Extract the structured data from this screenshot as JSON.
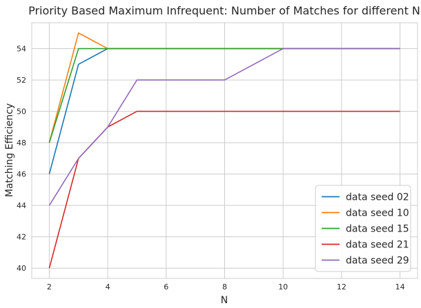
{
  "chart_data": {
    "type": "line",
    "title": "Priority Based Maximum Infrequent: Number of Matches for different N",
    "xlabel": "N",
    "ylabel": "Matching Efficiency",
    "xlim": [
      1.4,
      14.6
    ],
    "ylim": [
      39.35,
      55.65
    ],
    "xticks": [
      2,
      4,
      6,
      8,
      10,
      12,
      14
    ],
    "yticks": [
      40,
      42,
      44,
      46,
      48,
      50,
      52,
      54
    ],
    "grid": true,
    "legend_position": "bottom-right",
    "x": [
      2,
      3,
      4,
      5,
      6,
      7,
      8,
      9,
      10,
      11,
      12,
      13,
      14
    ],
    "series": [
      {
        "name": "data seed 02",
        "color": "#1f77b4",
        "values": [
          46,
          53,
          54,
          54,
          54,
          54,
          54,
          54,
          54,
          54,
          54,
          54,
          54
        ]
      },
      {
        "name": "data seed 10",
        "color": "#ff7f0e",
        "values": [
          48,
          55,
          54,
          54,
          54,
          54,
          54,
          54,
          54,
          54,
          54,
          54,
          54
        ]
      },
      {
        "name": "data seed 15",
        "color": "#2ca02c",
        "values": [
          48,
          54,
          54,
          54,
          54,
          54,
          54,
          54,
          54,
          54,
          54,
          54,
          54
        ]
      },
      {
        "name": "data seed 21",
        "color": "#d62728",
        "values": [
          40,
          47,
          49,
          50,
          50,
          50,
          50,
          50,
          50,
          50,
          50,
          50,
          50
        ]
      },
      {
        "name": "data seed 29",
        "color": "#9467bd",
        "values": [
          44,
          47,
          49,
          52,
          52,
          52,
          52,
          53,
          54,
          54,
          54,
          54,
          54
        ]
      }
    ]
  }
}
